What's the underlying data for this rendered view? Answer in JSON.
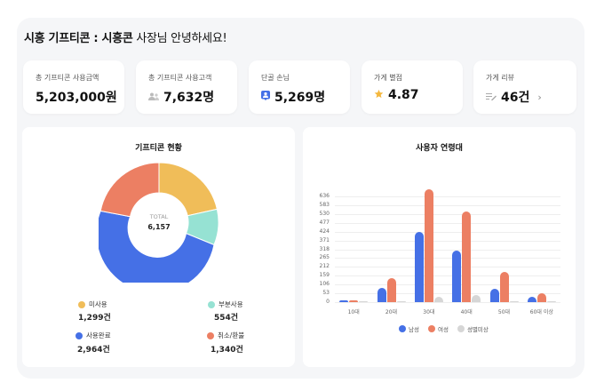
{
  "header": {
    "title_bold": "시흥 기프티콘 : 시흥콘",
    "title_rest": " 사장님 안녕하세요!"
  },
  "stats": [
    {
      "label": "총 기프티콘 사용금액",
      "value": "5,203,000원",
      "icon": ""
    },
    {
      "label": "총 기프티콘 사용고객",
      "value": "7,632명",
      "icon": "people-icon"
    },
    {
      "label": "단골 손님",
      "value": "5,269명",
      "icon": "person-badge-icon"
    },
    {
      "label": "가게 별점",
      "value": "4.87",
      "icon": "star-icon"
    },
    {
      "label": "가게 리뷰",
      "value": "46건",
      "icon": "review-edit-icon",
      "chevron": "›"
    }
  ],
  "donut": {
    "title": "기프티콘 현황",
    "center_label": "TOTAL",
    "center_value": "6,157",
    "legend": [
      {
        "label": "미사용",
        "value": "1,299건",
        "color": "#f0bd59"
      },
      {
        "label": "부분사용",
        "value": "554건",
        "color": "#96e2d3"
      },
      {
        "label": "사용완료",
        "value": "2,964건",
        "color": "#4570e6"
      },
      {
        "label": "취소/환불",
        "value": "1,340건",
        "color": "#ec7f63"
      }
    ]
  },
  "bar": {
    "title": "사용자 연령대",
    "legend": [
      {
        "label": "남성",
        "color": "#4570e6"
      },
      {
        "label": "여성",
        "color": "#ec7f63"
      },
      {
        "label": "성별미상",
        "color": "#d6d6d6"
      }
    ]
  },
  "chart_data": [
    {
      "type": "pie",
      "title": "기프티콘 현황",
      "categories": [
        "미사용",
        "부분사용",
        "사용완료",
        "취소/환불"
      ],
      "values": [
        1299,
        554,
        2964,
        1340
      ],
      "total": 6157,
      "colors": [
        "#f0bd59",
        "#96e2d3",
        "#4570e6",
        "#ec7f63"
      ],
      "legend_position": "bottom"
    },
    {
      "type": "bar",
      "title": "사용자 연령대",
      "categories": [
        "10대",
        "20대",
        "30대",
        "40대",
        "50대",
        "60대 이상"
      ],
      "series": [
        {
          "name": "남성",
          "values": [
            12,
            86,
            422,
            310,
            80,
            32
          ]
        },
        {
          "name": "여성",
          "values": [
            10,
            144,
            679,
            545,
            182,
            53
          ]
        },
        {
          "name": "성별미상",
          "values": [
            2,
            6,
            30,
            45,
            5,
            3
          ]
        }
      ],
      "yticks": [
        0,
        53,
        106,
        159,
        212,
        265,
        318,
        371,
        424,
        477,
        530,
        583,
        636
      ],
      "ylim": [
        0,
        690
      ],
      "grid": true,
      "legend_position": "bottom",
      "xlabel": "",
      "ylabel": ""
    }
  ]
}
